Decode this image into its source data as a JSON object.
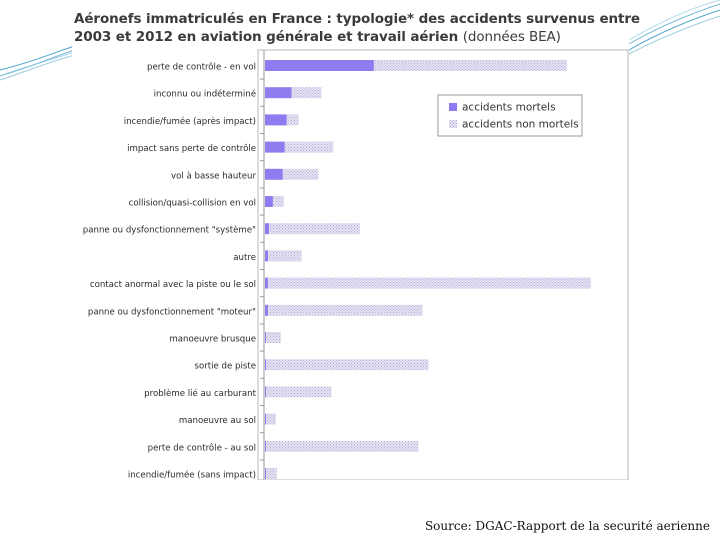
{
  "slide": {
    "source_note": "Source: DGAC-Rapport de la securité aerienne"
  },
  "chart_data": {
    "type": "bar",
    "orientation": "horizontal",
    "stacked": true,
    "title_line1": "Aéronefs immatriculés en France : typologie* des accidents survenus entre",
    "title_line2_bold": "2003 et 2012 en aviation générale et travail aérien",
    "title_line2_normal": "(données BEA)",
    "categories": [
      "perte de contrôle - en vol",
      "inconnu ou indéterminé",
      "incendie/fumée (après impact)",
      "impact sans perte de contrôle",
      "vol à basse hauteur",
      "collision/quasi-collision en vol",
      "panne ou dysfonctionnement \"système\"",
      "autre",
      "contact anormal avec la piste ou le sol",
      "panne ou dysfonctionnement \"moteur\"",
      "manoeuvre brusque",
      "sortie de piste",
      "problème lié au carburant",
      "manoeuvre au sol",
      "perte de contrôle - au sol",
      "incendie/fumée (sans impact)"
    ],
    "series": [
      {
        "name": "accidents mortels",
        "values": [
          110,
          27,
          22,
          20,
          18,
          8,
          4,
          3,
          3,
          3,
          1,
          1,
          1,
          1,
          1,
          1
        ],
        "color": "#8f7cf0"
      },
      {
        "name": "accidents non mortels",
        "values": [
          195,
          30,
          12,
          49,
          36,
          11,
          92,
          34,
          326,
          156,
          15,
          164,
          66,
          10,
          154,
          11
        ],
        "color": "#d8d4ee"
      }
    ],
    "legend_position": "right",
    "grid": false
  }
}
